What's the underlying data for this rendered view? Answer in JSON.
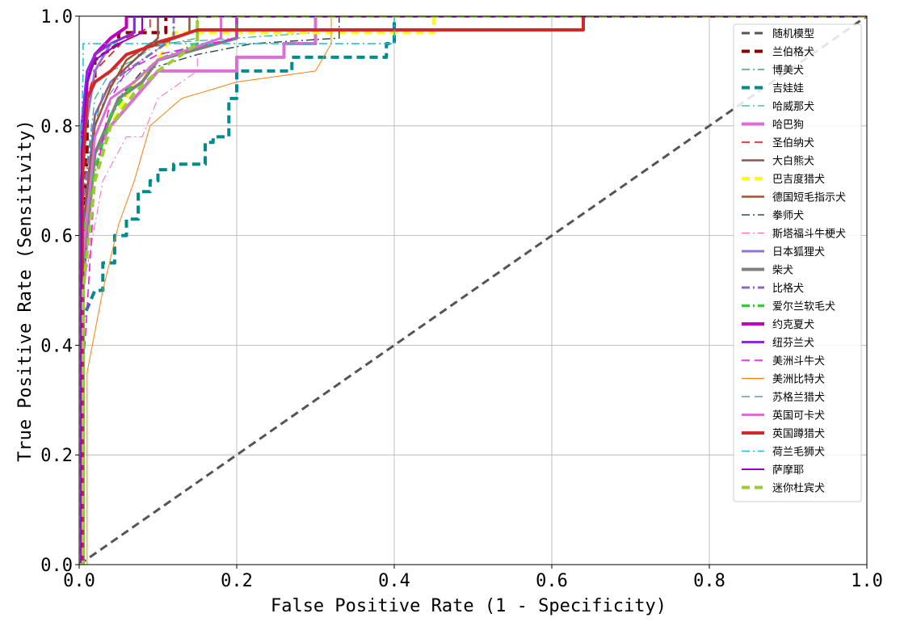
{
  "chart_data": {
    "type": "line",
    "title": "",
    "xlabel": "False Positive Rate (1 - Specificity)",
    "ylabel": "True Positive Rate (Sensitivity)",
    "xlim": [
      0.0,
      1.0
    ],
    "ylim": [
      0.0,
      1.0
    ],
    "x_ticks": [
      "0.0",
      "0.2",
      "0.4",
      "0.6",
      "0.8",
      "1.0"
    ],
    "y_ticks": [
      "0.0",
      "0.2",
      "0.4",
      "0.6",
      "0.8",
      "1.0"
    ],
    "grid": true,
    "legend_position": "right",
    "series": [
      {
        "name": "随机模型",
        "color": "#555555",
        "dash": "dash",
        "width": 3,
        "x": [
          0,
          1
        ],
        "y": [
          0,
          1
        ]
      },
      {
        "name": "兰伯格犬",
        "color": "#8b0000",
        "dash": "dash",
        "width": 4,
        "x": [
          0,
          0.003,
          0.003,
          0.01,
          0.01,
          0.02,
          0.02,
          0.05,
          0.05,
          0.11,
          0.11,
          1
        ],
        "y": [
          0,
          0,
          0.55,
          0.75,
          0.85,
          0.88,
          0.92,
          0.95,
          0.97,
          0.97,
          1.0,
          1.0
        ]
      },
      {
        "name": "博美犬",
        "color": "#2e8b57",
        "dash": "dashdot",
        "width": 1,
        "x": [
          0,
          0.004,
          0.004,
          0.02,
          0.03,
          0.06,
          0.08,
          0.15,
          0.15,
          1
        ],
        "y": [
          0,
          0,
          0.6,
          0.8,
          0.86,
          0.9,
          0.94,
          0.96,
          1.0,
          1.0
        ]
      },
      {
        "name": "吉娃娃",
        "color": "#008b8b",
        "dash": "dash",
        "width": 4,
        "x": [
          0,
          0.005,
          0.005,
          0.02,
          0.03,
          0.03,
          0.045,
          0.045,
          0.06,
          0.06,
          0.075,
          0.075,
          0.09,
          0.09,
          0.1,
          0.1,
          0.12,
          0.12,
          0.16,
          0.16,
          0.17,
          0.17,
          0.19,
          0.19,
          0.2,
          0.2,
          0.27,
          0.27,
          0.39,
          0.39,
          0.4,
          0.4,
          1
        ],
        "y": [
          0,
          0,
          0.45,
          0.5,
          0.5,
          0.55,
          0.55,
          0.6,
          0.6,
          0.63,
          0.63,
          0.68,
          0.68,
          0.7,
          0.7,
          0.72,
          0.72,
          0.73,
          0.73,
          0.77,
          0.77,
          0.78,
          0.78,
          0.85,
          0.85,
          0.9,
          0.9,
          0.925,
          0.925,
          0.95,
          0.95,
          1.0,
          1.0
        ]
      },
      {
        "name": "哈威那犬",
        "color": "#20b2aa",
        "dash": "dashdot",
        "width": 1.2,
        "x": [
          0,
          0.003,
          0.003,
          0.02,
          0.04,
          0.07,
          0.1,
          0.3,
          0.3,
          1
        ],
        "y": [
          0,
          0,
          0.65,
          0.85,
          0.9,
          0.92,
          0.95,
          0.97,
          1.0,
          1.0
        ]
      },
      {
        "name": "哈巴狗",
        "color": "#da70d6",
        "dash": "solid",
        "width": 4,
        "x": [
          0,
          0.004,
          0.004,
          0.02,
          0.04,
          0.07,
          0.1,
          0.2,
          0.2,
          0.26,
          0.26,
          0.3,
          0.3,
          1
        ],
        "y": [
          0,
          0,
          0.5,
          0.75,
          0.8,
          0.85,
          0.9,
          0.9,
          0.925,
          0.925,
          0.95,
          0.95,
          1.0,
          1.0
        ]
      },
      {
        "name": "圣伯纳犬",
        "color": "#ff0000",
        "dash": "dash",
        "width": 1.5,
        "x": [
          0,
          0.003,
          0.003,
          0.01,
          0.02,
          0.04,
          0.06,
          0.09,
          0.09,
          1
        ],
        "y": [
          0,
          0,
          0.7,
          0.85,
          0.9,
          0.93,
          0.96,
          0.98,
          1.0,
          1.0
        ]
      },
      {
        "name": "大白熊犬",
        "color": "#8c564b",
        "dash": "solid",
        "width": 2.5,
        "x": [
          0,
          0.004,
          0.004,
          0.02,
          0.04,
          0.07,
          0.1,
          0.1,
          1
        ],
        "y": [
          0,
          0,
          0.6,
          0.82,
          0.88,
          0.92,
          0.96,
          1.0,
          1.0
        ]
      },
      {
        "name": "巴吉度猎犬",
        "color": "#ffff00",
        "dash": "dash",
        "width": 4,
        "x": [
          0,
          0.005,
          0.005,
          0.02,
          0.04,
          0.07,
          0.1,
          0.12,
          0.45,
          0.45,
          1
        ],
        "y": [
          0,
          0,
          0.55,
          0.7,
          0.8,
          0.88,
          0.92,
          0.97,
          0.97,
          1.0,
          1.0
        ]
      },
      {
        "name": "德国短毛指示犬",
        "color": "#a0522d",
        "dash": "solid",
        "width": 2.5,
        "x": [
          0,
          0.004,
          0.004,
          0.02,
          0.04,
          0.06,
          0.09,
          0.14,
          0.14,
          1
        ],
        "y": [
          0,
          0,
          0.6,
          0.8,
          0.87,
          0.92,
          0.95,
          0.97,
          1.0,
          1.0
        ]
      },
      {
        "name": "拳师犬",
        "color": "#2f4f4f",
        "dash": "dashdot",
        "width": 1.5,
        "x": [
          0,
          0.004,
          0.004,
          0.02,
          0.05,
          0.08,
          0.15,
          0.22,
          0.33,
          0.33,
          1
        ],
        "y": [
          0,
          0,
          0.5,
          0.75,
          0.85,
          0.9,
          0.93,
          0.95,
          0.96,
          1.0,
          1.0
        ]
      },
      {
        "name": "斯塔福斗牛梗犬",
        "color": "#ff69b4",
        "dash": "dashdot",
        "width": 1,
        "x": [
          0,
          0.005,
          0.005,
          0.03,
          0.06,
          0.08,
          0.1,
          0.15,
          0.15,
          1
        ],
        "y": [
          0,
          0,
          0.5,
          0.7,
          0.78,
          0.78,
          0.85,
          0.9,
          1.0,
          1.0
        ]
      },
      {
        "name": "日本狐狸犬",
        "color": "#9370db",
        "dash": "solid",
        "width": 3,
        "x": [
          0,
          0.003,
          0.003,
          0.02,
          0.04,
          0.07,
          0.07,
          1
        ],
        "y": [
          0,
          0,
          0.75,
          0.9,
          0.95,
          0.97,
          1.0,
          1.0
        ]
      },
      {
        "name": "柴犬",
        "color": "#808080",
        "dash": "solid",
        "width": 4,
        "x": [
          0,
          0.005,
          0.005,
          0.02,
          0.05,
          0.08,
          0.1,
          0.2,
          0.2,
          1
        ],
        "y": [
          0,
          0,
          0.55,
          0.75,
          0.85,
          0.88,
          0.92,
          0.96,
          1.0,
          1.0
        ]
      },
      {
        "name": "比格犬",
        "color": "#9467bd",
        "dash": "dashdot",
        "width": 3,
        "x": [
          0,
          0.004,
          0.004,
          0.02,
          0.04,
          0.08,
          0.12,
          0.12,
          1
        ],
        "y": [
          0,
          0,
          0.65,
          0.82,
          0.88,
          0.92,
          0.96,
          1.0,
          1.0
        ]
      },
      {
        "name": "爱尔兰软毛犬",
        "color": "#32cd32",
        "dash": "dashdot",
        "width": 3.5,
        "x": [
          0,
          0.005,
          0.005,
          0.02,
          0.04,
          0.07,
          0.1,
          0.15,
          0.15,
          1
        ],
        "y": [
          0,
          0,
          0.6,
          0.72,
          0.82,
          0.88,
          0.92,
          0.95,
          1.0,
          1.0
        ]
      },
      {
        "name": "约克夏犬",
        "color": "#c000c0",
        "dash": "solid",
        "width": 4,
        "x": [
          0,
          0.003,
          0.003,
          0.01,
          0.02,
          0.04,
          0.06,
          0.06,
          1
        ],
        "y": [
          0,
          0,
          0.7,
          0.88,
          0.93,
          0.96,
          0.98,
          1.0,
          1.0
        ]
      },
      {
        "name": "纽芬兰犬",
        "color": "#8a2be2",
        "dash": "solid",
        "width": 3,
        "x": [
          0,
          0.003,
          0.003,
          0.01,
          0.02,
          0.04,
          0.07,
          0.07,
          1
        ],
        "y": [
          0,
          0,
          0.8,
          0.9,
          0.93,
          0.95,
          0.97,
          1.0,
          1.0
        ]
      },
      {
        "name": "美洲斗牛犬",
        "color": "#ff00ff",
        "dash": "dash",
        "width": 1.5,
        "x": [
          0,
          0.005,
          0.005,
          0.02,
          0.04,
          0.06,
          0.1,
          0.2,
          0.2,
          1
        ],
        "y": [
          0,
          0,
          0.35,
          0.7,
          0.85,
          0.9,
          0.93,
          0.96,
          1.0,
          1.0
        ]
      },
      {
        "name": "美洲比特犬",
        "color": "#ff7f0e",
        "dash": "solid",
        "width": 1,
        "x": [
          0,
          0.01,
          0.01,
          0.03,
          0.05,
          0.07,
          0.09,
          0.13,
          0.2,
          0.3,
          0.32,
          0.32,
          1
        ],
        "y": [
          0,
          0,
          0.35,
          0.5,
          0.62,
          0.7,
          0.8,
          0.85,
          0.88,
          0.9,
          0.95,
          1.0,
          1.0
        ]
      },
      {
        "name": "苏格兰猎犬",
        "color": "#4682b4",
        "dash": "dash",
        "width": 1,
        "x": [
          0,
          0.004,
          0.004,
          0.02,
          0.05,
          0.08,
          0.12,
          0.12,
          1
        ],
        "y": [
          0,
          0,
          0.6,
          0.82,
          0.88,
          0.92,
          0.96,
          1.0,
          1.0
        ]
      },
      {
        "name": "英国可卡犬",
        "color": "#da70d6",
        "dash": "solid",
        "width": 3,
        "x": [
          0,
          0.004,
          0.004,
          0.02,
          0.04,
          0.07,
          0.1,
          0.18,
          0.18,
          1
        ],
        "y": [
          0,
          0,
          0.55,
          0.78,
          0.85,
          0.88,
          0.92,
          0.96,
          1.0,
          1.0
        ]
      },
      {
        "name": "英国蹲猎犬",
        "color": "#d62728",
        "dash": "solid",
        "width": 4,
        "x": [
          0,
          0.004,
          0.004,
          0.01,
          0.02,
          0.04,
          0.06,
          0.1,
          0.15,
          0.27,
          0.64,
          0.64,
          1
        ],
        "y": [
          0,
          0,
          0.7,
          0.85,
          0.88,
          0.9,
          0.93,
          0.95,
          0.975,
          0.975,
          0.975,
          1.0,
          1.0
        ]
      },
      {
        "name": "荷兰毛狮犬",
        "color": "#17becf",
        "dash": "dashdot",
        "width": 1.5,
        "x": [
          0,
          0.003,
          0.003,
          0.005,
          0.005,
          0.4,
          0.4,
          1
        ],
        "y": [
          0,
          0,
          0.8,
          0.9,
          0.95,
          0.95,
          1.0,
          1.0
        ]
      },
      {
        "name": "萨摩耶",
        "color": "#9400d3",
        "dash": "solid",
        "width": 2,
        "x": [
          0,
          0.003,
          0.003,
          0.01,
          0.02,
          0.05,
          0.08,
          0.08,
          1
        ],
        "y": [
          0,
          0,
          0.75,
          0.88,
          0.92,
          0.95,
          0.97,
          1.0,
          1.0
        ]
      },
      {
        "name": "迷你杜宾犬",
        "color": "#9acd32",
        "dash": "dash",
        "width": 4,
        "x": [
          0,
          0.005,
          0.005,
          0.02,
          0.04,
          0.07,
          0.1,
          0.15,
          0.15,
          1
        ],
        "y": [
          0,
          0,
          0.5,
          0.7,
          0.8,
          0.86,
          0.9,
          0.95,
          1.0,
          1.0
        ]
      }
    ]
  }
}
